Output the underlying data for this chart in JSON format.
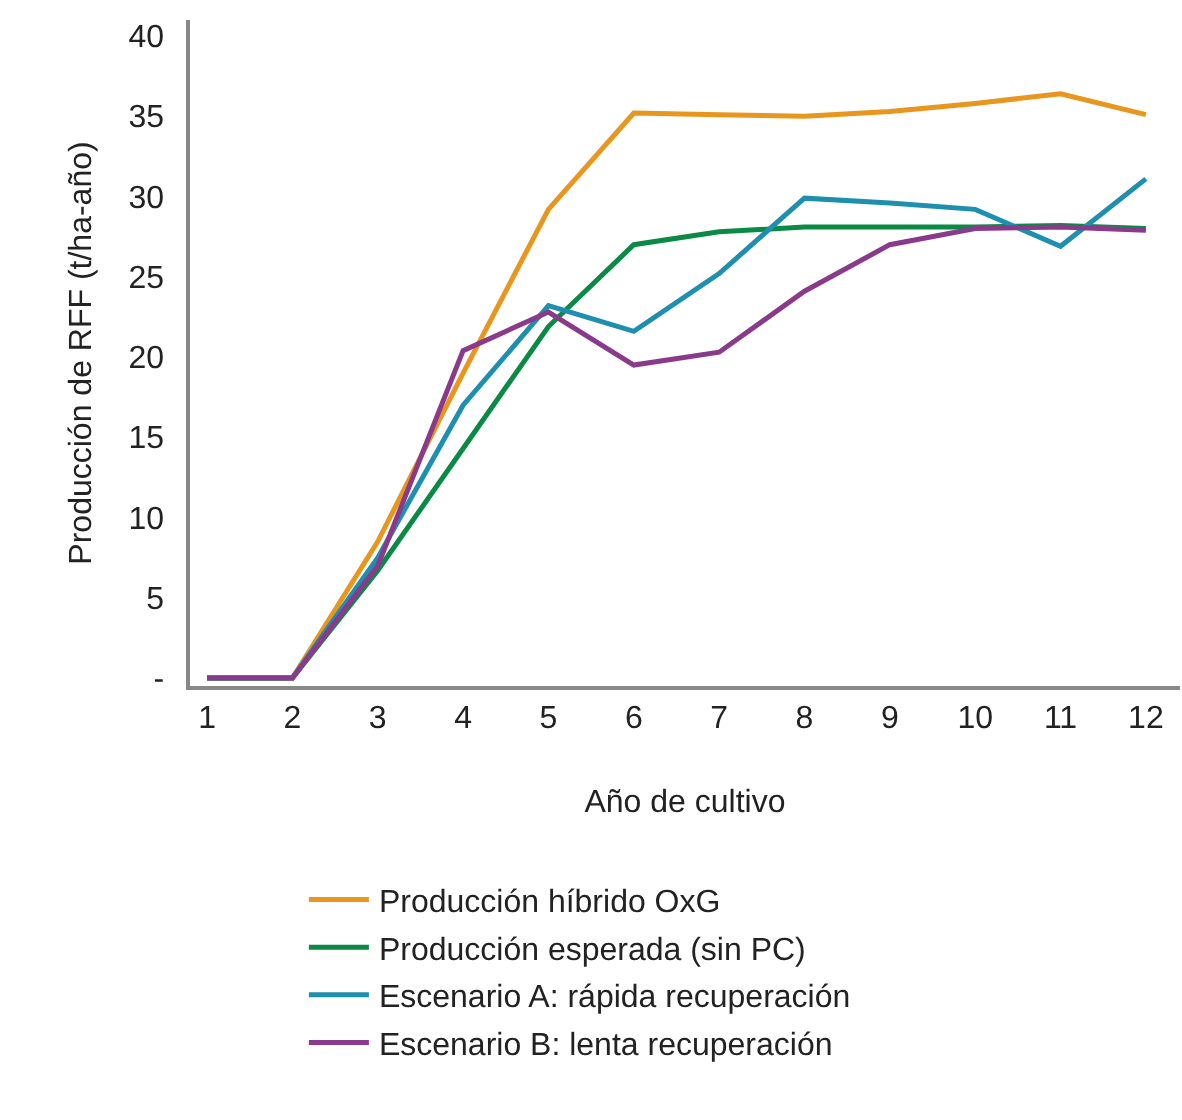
{
  "chart_data": {
    "type": "line",
    "xlabel": "Año de cultivo",
    "ylabel": "Producción de RFF (t/ha-año)",
    "x": [
      1,
      2,
      3,
      4,
      5,
      6,
      7,
      8,
      9,
      10,
      11,
      12
    ],
    "series": [
      {
        "name": "Producción híbrido OxG",
        "color": "#e8961e",
        "values": [
          0,
          0,
          8.5,
          19,
          29.2,
          35.2,
          35.1,
          35.0,
          35.3,
          35.8,
          36.4,
          35.1
        ]
      },
      {
        "name": "Producción esperada (sin PC)",
        "color": "#0a8a45",
        "values": [
          0,
          0,
          6.7,
          14.3,
          21.9,
          27.0,
          27.8,
          28.1,
          28.1,
          28.1,
          28.2,
          28.0
        ]
      },
      {
        "name": "Escenario A: rápida recuperación",
        "color": "#1e8fae",
        "values": [
          0,
          0,
          7.5,
          17,
          23.2,
          21.6,
          25.2,
          29.9,
          29.6,
          29.2,
          26.9,
          31.1
        ]
      },
      {
        "name": "Escenario B: lenta recuperación",
        "color": "#8a3a8a",
        "values": [
          0,
          0,
          7,
          20.4,
          22.8,
          19.5,
          20.3,
          24.1,
          27.0,
          28.0,
          28.1,
          27.9
        ]
      }
    ],
    "xlim": [
      0.8,
      12.4
    ],
    "xticks": [
      1,
      2,
      3,
      4,
      5,
      6,
      7,
      8,
      9,
      10,
      11,
      12
    ],
    "ylim": [
      -0.5,
      41
    ],
    "yticks": [
      {
        "value": 0,
        "label": "-"
      },
      5,
      10,
      15,
      20,
      25,
      30,
      35,
      40
    ],
    "grid": false,
    "legend": "bottom",
    "marker": "none",
    "line_style": "solid"
  }
}
